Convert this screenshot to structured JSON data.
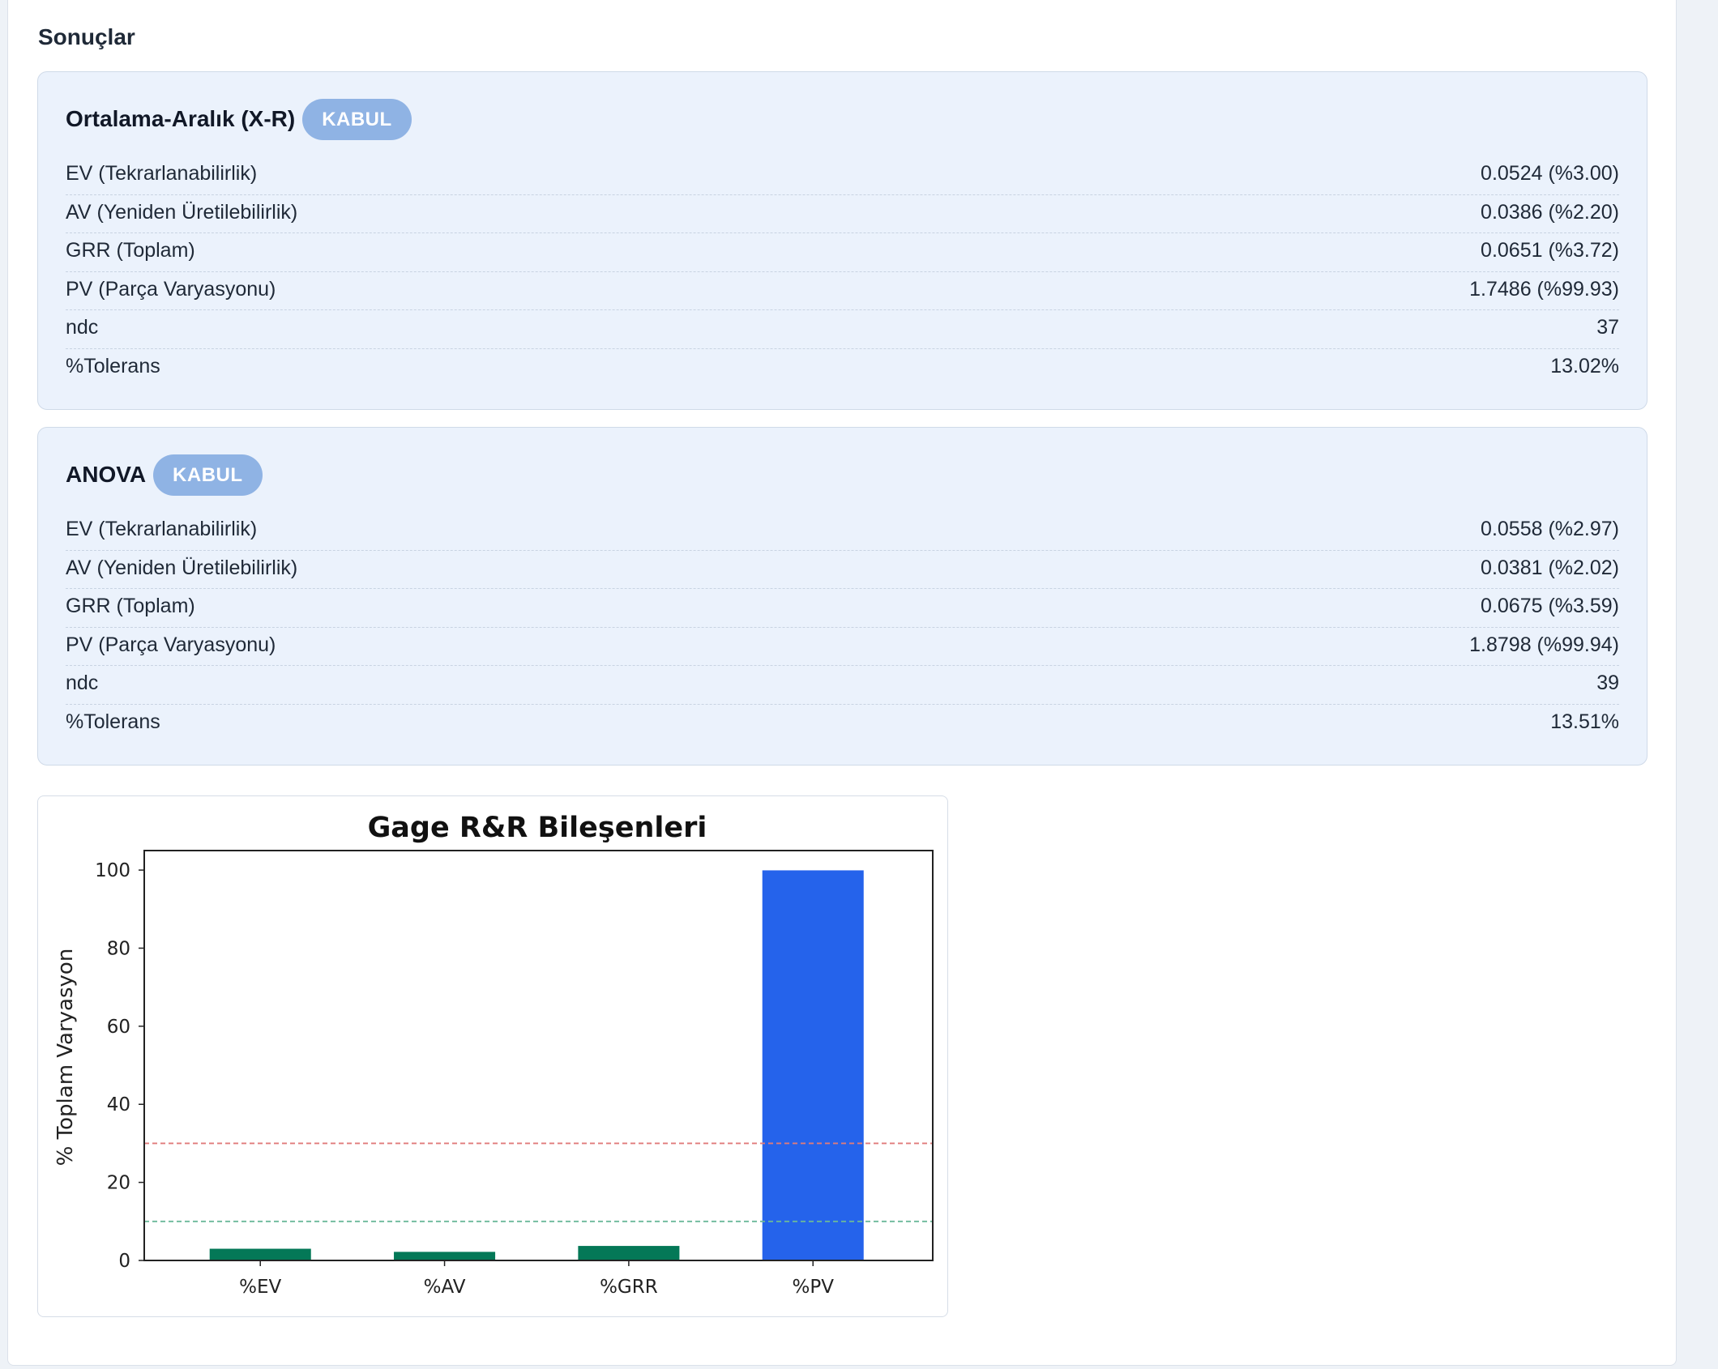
{
  "section_title": "Sonuçlar",
  "cards": [
    {
      "title": "Ortalama-Aralık (X-R)",
      "badge": "KABUL",
      "rows": [
        {
          "label": "EV (Tekrarlanabilirlik)",
          "value": "0.0524 (%3.00)"
        },
        {
          "label": "AV (Yeniden Üretilebilirlik)",
          "value": "0.0386 (%2.20)"
        },
        {
          "label": "GRR (Toplam)",
          "value": "0.0651 (%3.72)"
        },
        {
          "label": "PV (Parça Varyasyonu)",
          "value": "1.7486 (%99.93)"
        },
        {
          "label": "ndc",
          "value": "37"
        },
        {
          "label": "%Tolerans",
          "value": "13.02%"
        }
      ]
    },
    {
      "title": "ANOVA",
      "badge": "KABUL",
      "rows": [
        {
          "label": "EV (Tekrarlanabilirlik)",
          "value": "0.0558 (%2.97)"
        },
        {
          "label": "AV (Yeniden Üretilebilirlik)",
          "value": "0.0381 (%2.02)"
        },
        {
          "label": "GRR (Toplam)",
          "value": "0.0675 (%3.59)"
        },
        {
          "label": "PV (Parça Varyasyonu)",
          "value": "1.8798 (%99.94)"
        },
        {
          "label": "ndc",
          "value": "39"
        },
        {
          "label": "%Tolerans",
          "value": "13.51%"
        }
      ]
    }
  ],
  "colors": {
    "badge": "#8fb3e4",
    "bar_small": "#047857",
    "bar_large": "#2563eb",
    "line_30": "#e07b7b",
    "line_10": "#6bb89a"
  },
  "chart_data": {
    "type": "bar",
    "title": "Gage R&R Bileşenleri",
    "xlabel": "",
    "ylabel": "% Toplam Varyasyon",
    "categories": [
      "%EV",
      "%AV",
      "%GRR",
      "%PV"
    ],
    "values": [
      3.0,
      2.2,
      3.72,
      99.93
    ],
    "bar_colors": [
      "#047857",
      "#047857",
      "#047857",
      "#2563eb"
    ],
    "ylim": [
      0,
      105
    ],
    "yticks": [
      0,
      20,
      40,
      60,
      80,
      100
    ],
    "reference_lines": [
      {
        "y": 30,
        "color": "#e07b7b",
        "style": "dashed"
      },
      {
        "y": 10,
        "color": "#6bb89a",
        "style": "dashed"
      }
    ],
    "grid": false
  }
}
